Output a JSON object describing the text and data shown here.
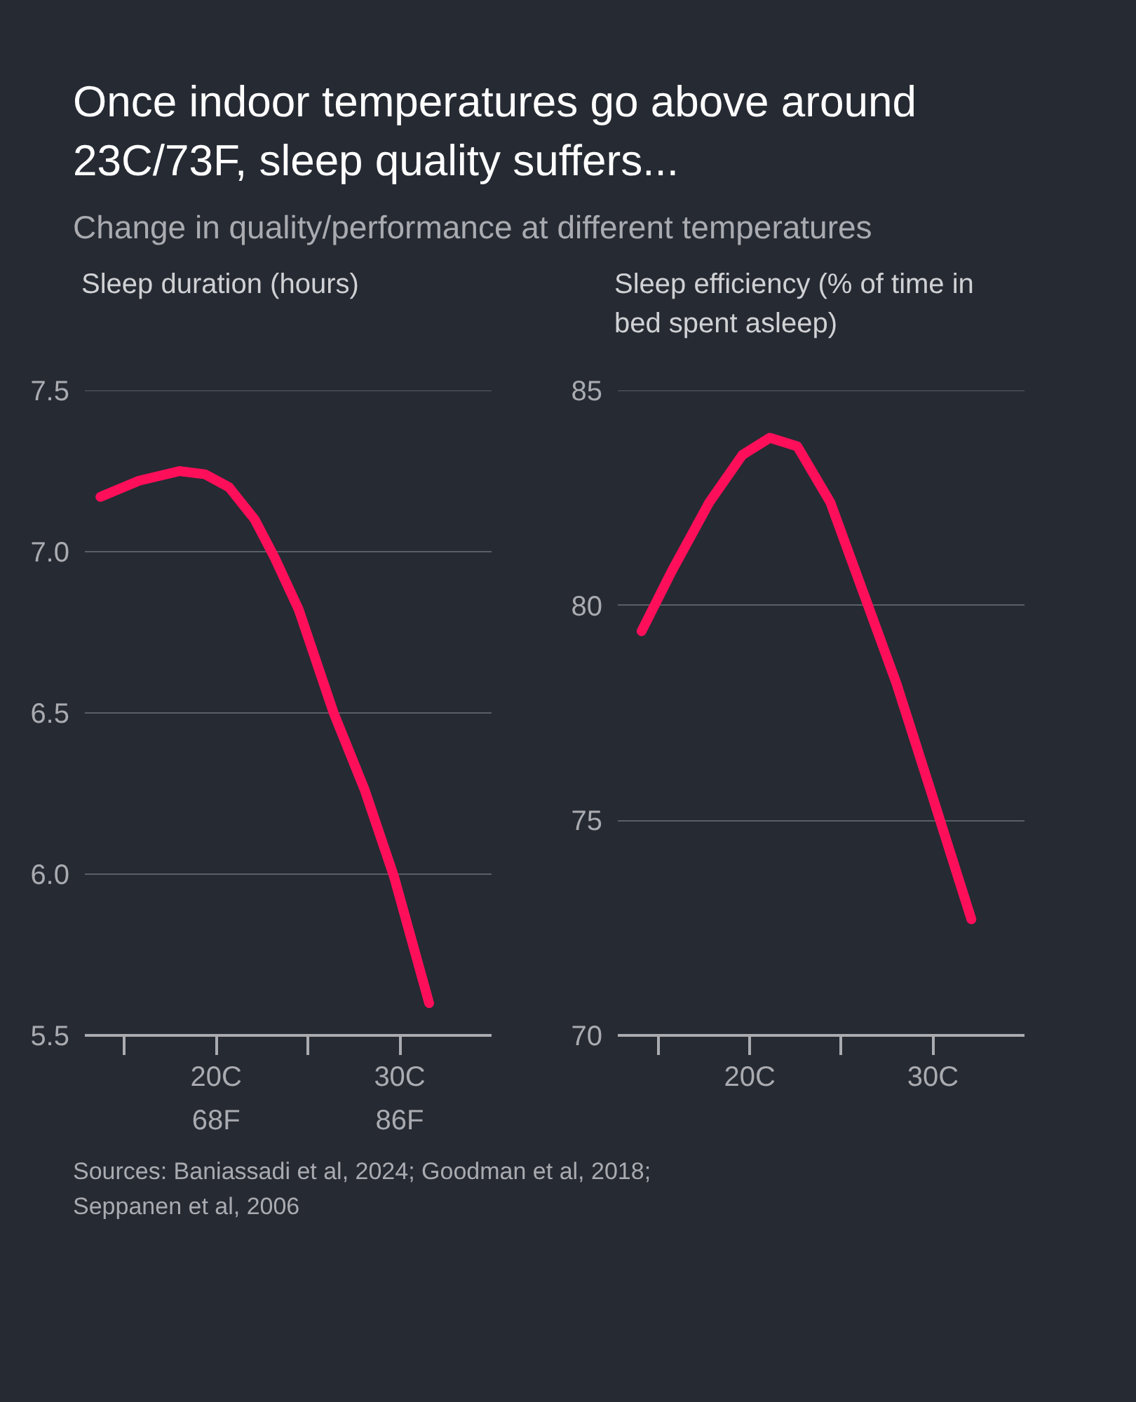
{
  "chart_data": [
    {
      "type": "line",
      "title": "Once indoor temperatures go above around 23C/73F, sleep quality suffers...",
      "subtitle": "Change in quality/performance at different temperatures",
      "ylabel": "Sleep duration (hours)",
      "x": [
        13.7,
        15.8,
        18.0,
        19.4,
        20.7,
        22.1,
        23.2,
        24.5,
        26.4,
        28.1,
        29.7,
        31.6
      ],
      "series": [
        {
          "color": "#ff0f5a",
          "values": [
            7.17,
            7.22,
            7.25,
            7.24,
            7.2,
            7.1,
            6.98,
            6.82,
            6.5,
            6.26,
            5.99,
            5.6
          ]
        }
      ],
      "xlim": [
        12.85,
        35
      ],
      "xticks": [
        {
          "value": 15,
          "label": null
        },
        {
          "value": 20,
          "label": "20C"
        },
        {
          "value": 25,
          "label": null
        },
        {
          "value": 30,
          "label": "30C"
        }
      ],
      "x2lim": [
        55.13,
        95
      ],
      "x2ticks": [
        {
          "value": 68,
          "label": "68F"
        },
        {
          "value": 86,
          "label": "86F"
        }
      ],
      "ylim": [
        5.5,
        7.5
      ],
      "yticks": [
        {
          "value": 5.5,
          "label": "5.5"
        },
        {
          "value": 6,
          "label": "6.0"
        },
        {
          "value": 6.5,
          "label": "6.5"
        },
        {
          "value": 7,
          "label": "7.0"
        },
        {
          "value": 7.5,
          "label": "7.5"
        }
      ],
      "grid": "y",
      "line_style": "solid",
      "marker": "none",
      "annotations": [
        "Sources: Baniassadi et al, 2024; Goodman et al, 2018; Seppanen et al, 2006"
      ]
    },
    {
      "type": "line",
      "ylabel": "Sleep efficiency (% of time in bed spent asleep)",
      "x": [
        14.1,
        15.75,
        17.8,
        19.6,
        21.1,
        22.6,
        24.4,
        26.2,
        28.0,
        29.8,
        32.1
      ],
      "series": [
        {
          "color": "#ff0f5a",
          "values": [
            79.4,
            80.8,
            82.4,
            83.5,
            83.9,
            83.7,
            82.4,
            80.3,
            78.2,
            75.8,
            72.7
          ]
        }
      ],
      "xlim": [
        12.8,
        35
      ],
      "xticks": [
        {
          "value": 15,
          "label": null
        },
        {
          "value": 20,
          "label": "20C"
        },
        {
          "value": 25,
          "label": null
        },
        {
          "value": 30,
          "label": "30C"
        }
      ],
      "ylim": [
        70,
        85
      ],
      "yticks": [
        70,
        75,
        80,
        85
      ],
      "grid": "y",
      "line_style": "solid",
      "marker": "none"
    }
  ]
}
